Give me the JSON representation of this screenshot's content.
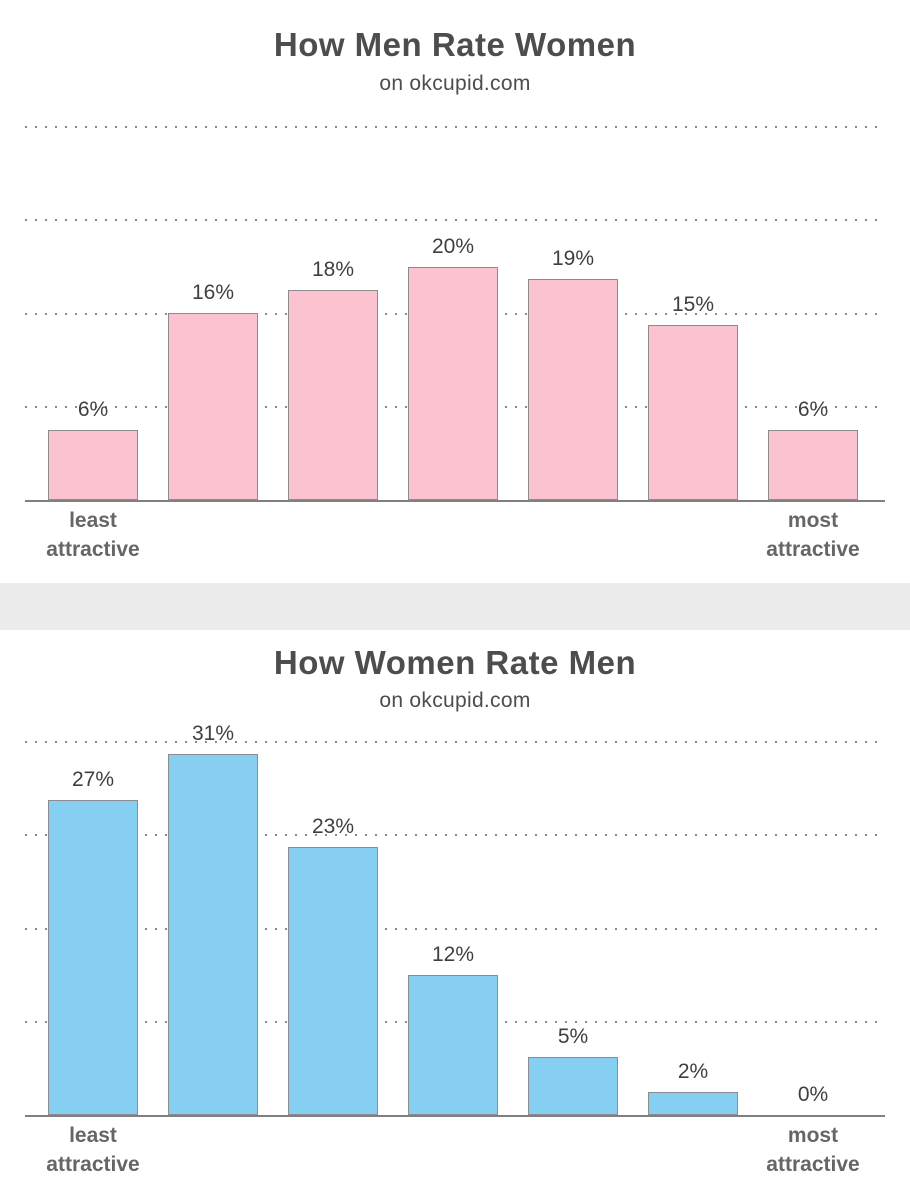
{
  "page": {
    "background": "#ffffff",
    "divider_color": "#ececec"
  },
  "chart_data": [
    {
      "type": "bar",
      "title": "How Men Rate Women",
      "subtitle": "on okcupid.com",
      "values": [
        6,
        16,
        18,
        20,
        19,
        15,
        6
      ],
      "value_labels": [
        "6%",
        "16%",
        "18%",
        "20%",
        "19%",
        "15%",
        "6%"
      ],
      "x_axis_left_label": "least\nattractive",
      "x_axis_right_label": "most\nattractive",
      "ylim": [
        0,
        32
      ],
      "gridlines_pct": [
        8,
        16,
        24,
        32
      ],
      "grid_style": "dotted",
      "legend": "none",
      "colors": {
        "bar_fill": "#fbc3d0",
        "bar_border": "#8c8c8c",
        "grid": "#888888",
        "axis": "#808080",
        "value_text": "#3f3f3f",
        "axis_label_text": "#666666",
        "title_text": "#4d4d4d"
      }
    },
    {
      "type": "bar",
      "title": "How Women Rate Men",
      "subtitle": "on okcupid.com",
      "values": [
        27,
        31,
        23,
        12,
        5,
        2,
        0
      ],
      "value_labels": [
        "27%",
        "31%",
        "23%",
        "12%",
        "5%",
        "2%",
        "0%"
      ],
      "x_axis_left_label": "least\nattractive",
      "x_axis_right_label": "most\nattractive",
      "ylim": [
        0,
        32
      ],
      "gridlines_pct": [
        8,
        16,
        24,
        32
      ],
      "grid_style": "dotted",
      "legend": "none",
      "colors": {
        "bar_fill": "#86cff3",
        "bar_border": "#8c8c8c",
        "grid": "#888888",
        "axis": "#808080",
        "value_text": "#3f3f3f",
        "axis_label_text": "#666666",
        "title_text": "#4d4d4d"
      }
    }
  ]
}
